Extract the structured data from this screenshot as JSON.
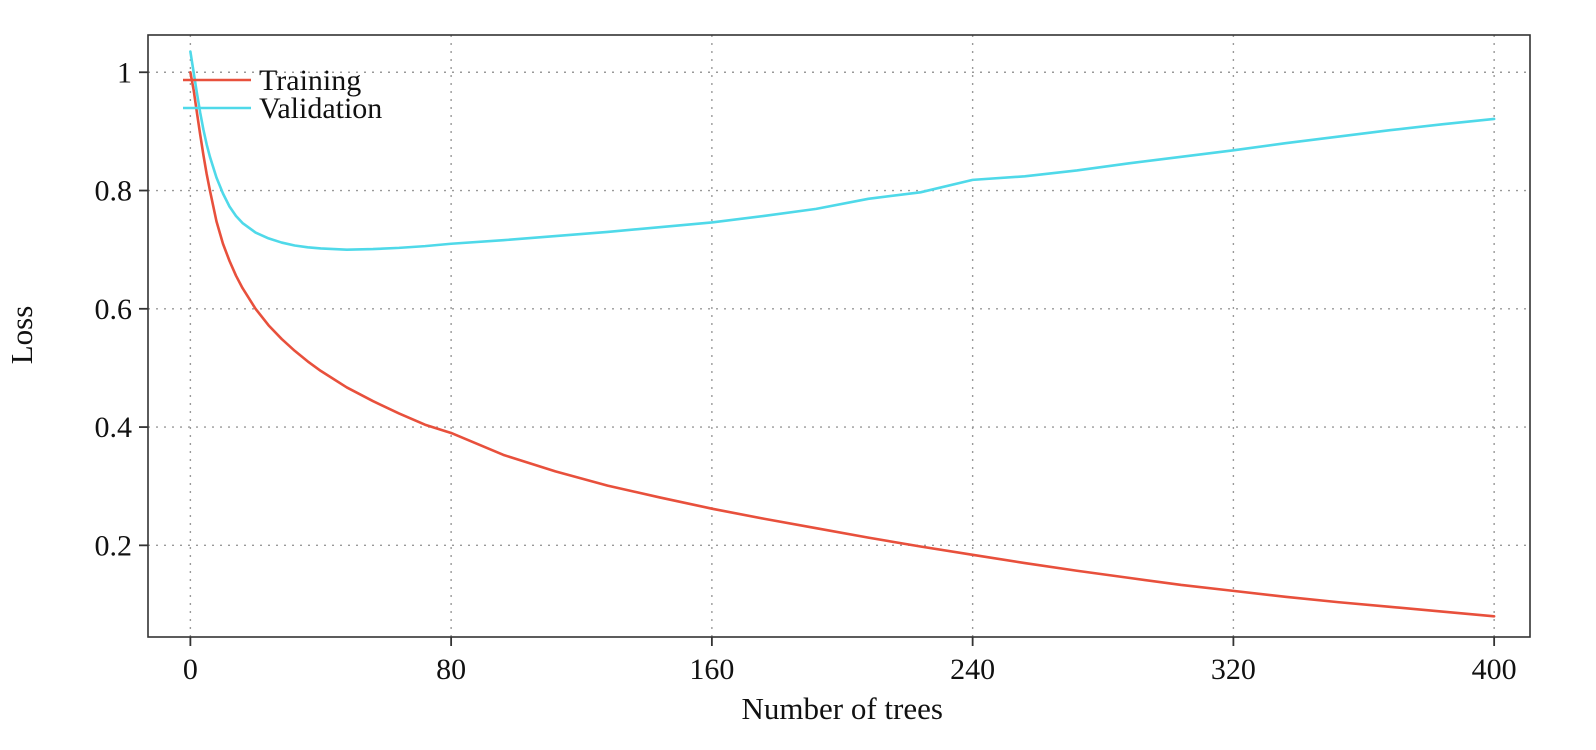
{
  "chart_data": {
    "type": "line",
    "title": "",
    "xlabel": "Number of trees",
    "ylabel": "Loss",
    "xticks": [
      0,
      80,
      160,
      240,
      320,
      400
    ],
    "xtick_labels": [
      "0",
      "80",
      "160",
      "240",
      "320",
      "400"
    ],
    "yticks": [
      0.2,
      0.4,
      0.6,
      0.8,
      1
    ],
    "ytick_labels": [
      "0.2",
      "0.4",
      "0.6",
      "0.8",
      "1"
    ],
    "xlim": [
      -13,
      411
    ],
    "ylim": [
      0.045,
      1.063
    ],
    "grid": true,
    "grid_style": "dotted",
    "grid_color": "#999999",
    "frame_color": "#333333",
    "legend_position": "top-left",
    "x": [
      0,
      1,
      2,
      3,
      4,
      5,
      6,
      8,
      10,
      12,
      14,
      16,
      20,
      24,
      28,
      32,
      36,
      40,
      48,
      56,
      64,
      72,
      80,
      96,
      112,
      128,
      144,
      160,
      176,
      192,
      208,
      224,
      240,
      256,
      272,
      288,
      304,
      320,
      336,
      352,
      368,
      384,
      400
    ],
    "series": [
      {
        "name": "Training",
        "color": "#e8503c",
        "values": [
          1.0,
          0.97,
          0.932,
          0.895,
          0.86,
          0.828,
          0.8,
          0.748,
          0.71,
          0.681,
          0.656,
          0.635,
          0.6,
          0.572,
          0.549,
          0.529,
          0.511,
          0.495,
          0.467,
          0.444,
          0.423,
          0.404,
          0.39,
          0.353,
          0.325,
          0.301,
          0.281,
          0.262,
          0.245,
          0.229,
          0.213,
          0.198,
          0.184,
          0.17,
          0.157,
          0.145,
          0.133,
          0.123,
          0.113,
          0.104,
          0.096,
          0.088,
          0.08
        ]
      },
      {
        "name": "Validation",
        "color": "#4fd9e9",
        "values": [
          1.035,
          1.0,
          0.965,
          0.932,
          0.903,
          0.878,
          0.857,
          0.822,
          0.795,
          0.773,
          0.757,
          0.745,
          0.729,
          0.719,
          0.712,
          0.707,
          0.704,
          0.702,
          0.7,
          0.701,
          0.703,
          0.706,
          0.71,
          0.716,
          0.723,
          0.73,
          0.738,
          0.746,
          0.757,
          0.769,
          0.786,
          0.797,
          0.818,
          0.824,
          0.834,
          0.846,
          0.857,
          0.868,
          0.88,
          0.891,
          0.902,
          0.912,
          0.921
        ]
      }
    ]
  }
}
